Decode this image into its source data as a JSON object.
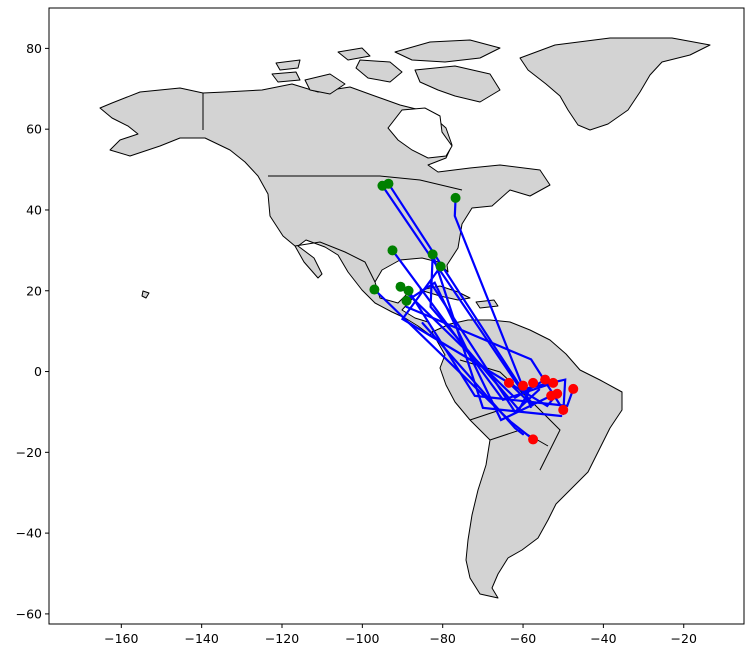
{
  "chart_data": {
    "type": "scatter",
    "title": "",
    "xlabel": "",
    "ylabel": "",
    "xlim": [
      -178,
      -5
    ],
    "ylim": [
      -62.5,
      90
    ],
    "x_ticks": [
      -160,
      -140,
      -120,
      -100,
      -80,
      -60,
      -40,
      -20
    ],
    "y_ticks": [
      -60,
      -40,
      -20,
      0,
      20,
      40,
      60,
      80
    ],
    "colors": {
      "origin_marker": "#008000",
      "destination_marker": "#ff0000",
      "route_line": "#0000ff",
      "land": "#d3d3d3"
    },
    "origins": [
      {
        "lon": -95.0,
        "lat": 46.0
      },
      {
        "lon": -93.5,
        "lat": 46.5
      },
      {
        "lon": -76.8,
        "lat": 43.0
      },
      {
        "lon": -92.5,
        "lat": 30.0
      },
      {
        "lon": -82.5,
        "lat": 29.0
      },
      {
        "lon": -80.5,
        "lat": 26.0
      },
      {
        "lon": -97.0,
        "lat": 20.3
      },
      {
        "lon": -90.5,
        "lat": 21.0
      },
      {
        "lon": -88.5,
        "lat": 20.0
      },
      {
        "lon": -89.0,
        "lat": 17.5
      }
    ],
    "destinations": [
      {
        "lon": -63.5,
        "lat": -2.8
      },
      {
        "lon": -60.0,
        "lat": -3.5
      },
      {
        "lon": -57.5,
        "lat": -2.8
      },
      {
        "lon": -54.5,
        "lat": -2.0
      },
      {
        "lon": -52.5,
        "lat": -2.8
      },
      {
        "lon": -51.5,
        "lat": -5.5
      },
      {
        "lon": -53.0,
        "lat": -6.0
      },
      {
        "lon": -47.5,
        "lat": -4.3
      },
      {
        "lon": -50.0,
        "lat": -9.5
      },
      {
        "lon": -57.5,
        "lat": -16.8
      }
    ],
    "routes": [
      [
        [
          -95.0,
          46.0
        ],
        [
          -60.5,
          -4.5
        ],
        [
          -49.5,
          -2.0
        ],
        [
          -50.0,
          -10.5
        ]
      ],
      [
        [
          -93.5,
          46.5
        ],
        [
          -57.5,
          -8.5
        ],
        [
          -63.5,
          -2.8
        ]
      ],
      [
        [
          -76.8,
          43.0
        ],
        [
          -77.0,
          38.5
        ],
        [
          -58.0,
          -9.0
        ],
        [
          -60.0,
          -3.5
        ]
      ],
      [
        [
          -92.5,
          30.0
        ],
        [
          -65.0,
          -7.0
        ],
        [
          -52.5,
          -2.8
        ]
      ],
      [
        [
          -82.5,
          29.0
        ],
        [
          -83.0,
          16.0
        ],
        [
          -61.0,
          -9.5
        ],
        [
          -57.5,
          -2.8
        ]
      ],
      [
        [
          -80.5,
          26.0
        ],
        [
          -90.0,
          13.0
        ],
        [
          -54.0,
          -8.5
        ],
        [
          -51.5,
          -5.5
        ]
      ],
      [
        [
          -97.0,
          20.3
        ],
        [
          -63.0,
          -12.5
        ],
        [
          -57.5,
          -16.8
        ]
      ],
      [
        [
          -90.5,
          21.0
        ],
        [
          -62.0,
          -6.5
        ],
        [
          -54.5,
          -2.0
        ]
      ],
      [
        [
          -88.5,
          20.0
        ],
        [
          -72.0,
          -6.0
        ],
        [
          -49.0,
          -8.5
        ],
        [
          -47.5,
          -4.3
        ]
      ],
      [
        [
          -89.0,
          17.5
        ],
        [
          -82.0,
          22.0
        ],
        [
          -65.5,
          -12.0
        ],
        [
          -53.0,
          -6.0
        ]
      ],
      [
        [
          -83.0,
          22.0
        ],
        [
          -62.0,
          -10.0
        ],
        [
          -56.0,
          -4.5
        ]
      ],
      [
        [
          -89.0,
          16.0
        ],
        [
          -58.0,
          3.0
        ],
        [
          -50.0,
          -9.5
        ]
      ],
      [
        [
          -82.5,
          29.0
        ],
        [
          -70.0,
          -9.0
        ],
        [
          -50.5,
          -11.0
        ]
      ],
      [
        [
          -85.0,
          12.0
        ],
        [
          -62.0,
          -14.0
        ],
        [
          -60.0,
          -15.5
        ]
      ]
    ]
  }
}
